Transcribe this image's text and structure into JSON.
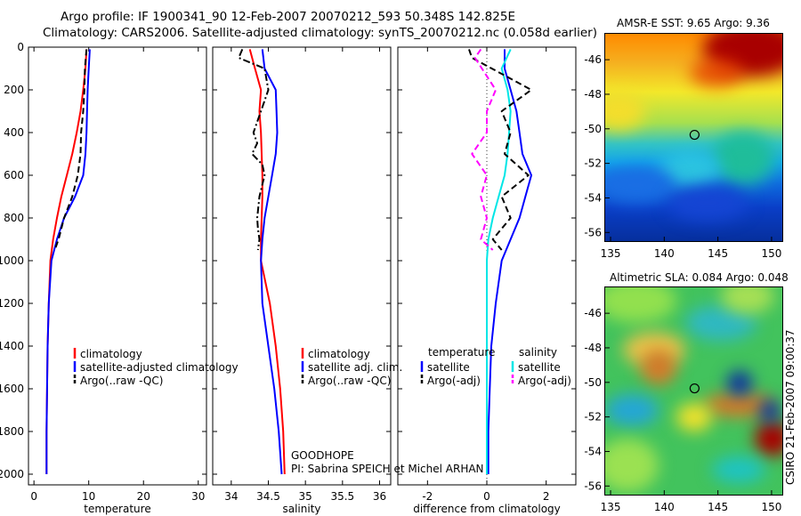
{
  "header": {
    "line1": "Argo profile: IF 1900341_90 12-Feb-2007 20070212_593 50.348S 142.825E",
    "line2": "Climatology: CARS2006. Satellite-adjusted climatology: synTS_20070212.nc (0.058d earlier)"
  },
  "chart_data": [
    {
      "type": "line",
      "panel": "temperature",
      "xlabel": "temperature",
      "ylabel": "",
      "xlim": [
        -1,
        31.5
      ],
      "ylim": [
        2050,
        0
      ],
      "y_inverted": true,
      "xticks": [
        "0",
        "10",
        "20",
        "30"
      ],
      "yticks": [
        "0",
        "200",
        "400",
        "600",
        "800",
        "1000",
        "1200",
        "1400",
        "1600",
        "1800",
        "2000"
      ],
      "legend": {
        "placement": "bottom-center",
        "entries": [
          "climatology",
          "satellite-adjusted climatology",
          "Argo(..raw -QC)"
        ]
      },
      "series": [
        {
          "name": "climatology",
          "color": "#ff0000",
          "style": "solid",
          "x": [
            9.6,
            9.4,
            9.0,
            8.5,
            7.8,
            7.0,
            6.0,
            5.0,
            4.2,
            3.5,
            3.0,
            2.7,
            2.5,
            2.4,
            2.3,
            2.3
          ],
          "y": [
            10,
            100,
            200,
            300,
            400,
            500,
            600,
            700,
            800,
            900,
            1000,
            1200,
            1400,
            1600,
            1800,
            2000
          ]
        },
        {
          "name": "satellite-adjusted climatology",
          "color": "#0000ff",
          "style": "solid",
          "x": [
            10.2,
            10.0,
            9.8,
            9.7,
            9.6,
            9.4,
            9.0,
            7.5,
            5.5,
            4.2,
            3.2,
            2.7,
            2.5,
            2.4,
            2.3,
            2.3
          ],
          "y": [
            10,
            100,
            200,
            300,
            400,
            500,
            600,
            700,
            800,
            900,
            1000,
            1200,
            1400,
            1600,
            1800,
            2000
          ]
        },
        {
          "name": "Argo(..raw -QC)",
          "color": "#000000",
          "style": "dashed",
          "x": [
            9.6,
            9.3,
            9.2,
            9.0,
            8.6,
            8.5,
            8.0,
            7.0,
            5.5,
            4.5,
            3.8
          ],
          "y": [
            10,
            100,
            200,
            300,
            400,
            500,
            600,
            700,
            800,
            900,
            950
          ]
        }
      ]
    },
    {
      "type": "line",
      "panel": "salinity",
      "xlabel": "salinity",
      "ylabel": "",
      "xlim": [
        33.75,
        36.15
      ],
      "ylim": [
        2050,
        0
      ],
      "y_inverted": true,
      "xticks": [
        "34",
        "34.5",
        "35",
        "35.5",
        "36"
      ],
      "legend": {
        "placement": "bottom-right",
        "entries": [
          "climatology",
          "satellite adj. clim.",
          "Argo(..raw -QC)"
        ]
      },
      "annotation": [
        "GOODHOPE",
        "PI: Sabrina SPEICH et Michel ARHAN"
      ],
      "series": [
        {
          "name": "climatology",
          "color": "#ff0000",
          "style": "solid",
          "x": [
            34.25,
            34.32,
            34.4,
            34.38,
            34.4,
            34.41,
            34.42,
            34.42,
            34.41,
            34.4,
            34.4,
            34.52,
            34.6,
            34.66,
            34.7,
            34.72
          ],
          "y": [
            10,
            100,
            200,
            300,
            400,
            500,
            600,
            700,
            800,
            900,
            1000,
            1200,
            1400,
            1600,
            1800,
            2000
          ]
        },
        {
          "name": "satellite adj. clim.",
          "color": "#0000ff",
          "style": "solid",
          "x": [
            34.42,
            34.45,
            34.6,
            34.61,
            34.62,
            34.6,
            34.55,
            34.5,
            34.45,
            34.42,
            34.4,
            34.42,
            34.5,
            34.58,
            34.64,
            34.68
          ],
          "y": [
            10,
            100,
            200,
            300,
            400,
            500,
            600,
            700,
            800,
            900,
            1000,
            1200,
            1400,
            1600,
            1800,
            2000
          ]
        },
        {
          "name": "Argo(..raw -QC)",
          "color": "#000000",
          "style": "dashdot",
          "x": [
            34.15,
            34.1,
            34.45,
            34.5,
            34.4,
            34.3,
            34.35,
            34.28,
            34.42,
            34.45,
            34.38,
            34.35,
            34.36,
            34.38,
            34.36
          ],
          "y": [
            10,
            50,
            100,
            200,
            300,
            400,
            450,
            500,
            550,
            600,
            700,
            800,
            850,
            900,
            950
          ]
        }
      ]
    },
    {
      "type": "line",
      "panel": "difference",
      "xlabel": "difference from climatology",
      "ylabel": "",
      "xlim": [
        -3.0,
        3.0
      ],
      "ylim": [
        2050,
        0
      ],
      "y_inverted": true,
      "xticks": [
        "-2",
        "0",
        "2"
      ],
      "legend": {
        "placement": "bottom",
        "entries": [
          "temperature",
          "salinity",
          "satellite",
          "satellite",
          "Argo(-adj)",
          "Argo(-adj)"
        ]
      },
      "series": [
        {
          "name": "satellite (temperature)",
          "color": "#0000ff",
          "style": "solid",
          "x": [
            0.6,
            0.6,
            0.8,
            1.0,
            1.1,
            1.2,
            1.5,
            1.3,
            1.1,
            0.8,
            0.5,
            0.3,
            0.15,
            0.1,
            0.05,
            0.05
          ],
          "y": [
            10,
            100,
            200,
            300,
            400,
            500,
            600,
            700,
            800,
            900,
            1000,
            1200,
            1400,
            1600,
            1800,
            2000
          ]
        },
        {
          "name": "satellite (salinity)",
          "color": "#00e6e6",
          "style": "solid",
          "x": [
            0.8,
            0.5,
            0.7,
            0.8,
            0.75,
            0.7,
            0.6,
            0.4,
            0.2,
            0.05,
            0.0,
            0.0,
            0.0,
            0.0,
            0.0,
            0.0
          ],
          "y": [
            10,
            100,
            200,
            300,
            400,
            500,
            600,
            700,
            800,
            900,
            1000,
            1200,
            1400,
            1600,
            1800,
            2000
          ]
        },
        {
          "name": "Argo(-adj) (temperature)",
          "color": "#000000",
          "style": "dashed",
          "x": [
            -0.6,
            -0.5,
            1.5,
            0.5,
            0.8,
            0.6,
            1.4,
            0.5,
            0.8,
            0.2,
            0.5
          ],
          "y": [
            10,
            50,
            200,
            300,
            400,
            500,
            600,
            700,
            800,
            900,
            950
          ]
        },
        {
          "name": "Argo(-adj) (salinity)",
          "color": "#ff00ff",
          "style": "dashed",
          "x": [
            -0.2,
            -0.4,
            0.3,
            0.0,
            0.0,
            -0.5,
            0.0,
            -0.2,
            0.0,
            -0.2,
            0.2
          ],
          "y": [
            10,
            50,
            200,
            300,
            400,
            500,
            600,
            700,
            800,
            900,
            950
          ]
        }
      ]
    }
  ],
  "maps": {
    "sst": {
      "title": "AMSR-E SST: 9.65 Argo: 9.36",
      "xticks": [
        "135",
        "140",
        "145",
        "150"
      ],
      "yticks": [
        "-46",
        "-48",
        "-50",
        "-52",
        "-54",
        "-56"
      ],
      "lon_range": [
        134.5,
        151.0
      ],
      "lat_range": [
        -56.5,
        -44.5
      ],
      "marker": {
        "lon": 142.825,
        "lat": -50.348
      }
    },
    "sla": {
      "title": "Altimetric SLA: 0.084 Argo: 0.048",
      "xticks": [
        "135",
        "140",
        "145",
        "150"
      ],
      "yticks": [
        "-46",
        "-48",
        "-50",
        "-52",
        "-54",
        "-56"
      ],
      "lon_range": [
        134.5,
        151.0
      ],
      "lat_range": [
        -56.5,
        -44.5
      ],
      "marker": {
        "lon": 142.825,
        "lat": -50.348
      }
    }
  },
  "footer": {
    "credit": "CSIRO 21-Feb-2007 09:00:37"
  }
}
